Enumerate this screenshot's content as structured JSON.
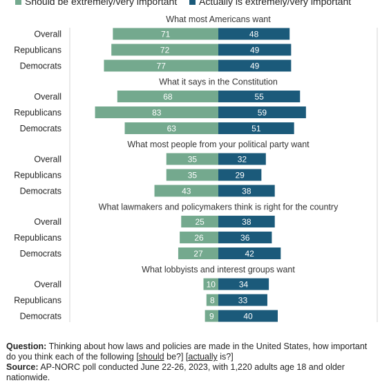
{
  "legend": {
    "should_label": "Should be extremely/very important",
    "actually_label": "Actually is extremely/very important"
  },
  "colors": {
    "should": "#74a98e",
    "actually": "#1b5a7a",
    "axis": "#d6d6d6",
    "text": "#222222"
  },
  "chart_data": {
    "type": "bar",
    "orientation": "horizontal-diverging",
    "x_range": [
      -100,
      100
    ],
    "categories": [
      "Overall",
      "Republicans",
      "Democrats"
    ],
    "series_names": [
      "Should be extremely/very important",
      "Actually is extremely/very important"
    ],
    "panels": [
      {
        "title": "What most Americans want",
        "should": [
          71,
          72,
          77
        ],
        "actually": [
          48,
          49,
          49
        ]
      },
      {
        "title": "What it says in the Constitution",
        "should": [
          68,
          83,
          63
        ],
        "actually": [
          55,
          59,
          51
        ]
      },
      {
        "title": "What most people from your political party want",
        "should": [
          35,
          35,
          43
        ],
        "actually": [
          32,
          29,
          38
        ]
      },
      {
        "title": "What lawmakers and policymakers think is right for the country",
        "should": [
          25,
          26,
          27
        ],
        "actually": [
          38,
          36,
          42
        ]
      },
      {
        "title": "What lobbyists and interest groups want",
        "should": [
          10,
          8,
          9
        ],
        "actually": [
          34,
          33,
          40
        ]
      }
    ]
  },
  "footer": {
    "question_label": "Question:",
    "question_pre": "Thinking about how laws and policies are made in the United States, how important do you think each of the following [",
    "question_should": "should",
    "question_mid": " be?] [",
    "question_actually": "actually",
    "question_post": " is?]",
    "source_label": "Source:",
    "source_text": "AP-NORC poll conducted June 22-26, 2023, with 1,220 adults age 18 and older nationwide."
  }
}
